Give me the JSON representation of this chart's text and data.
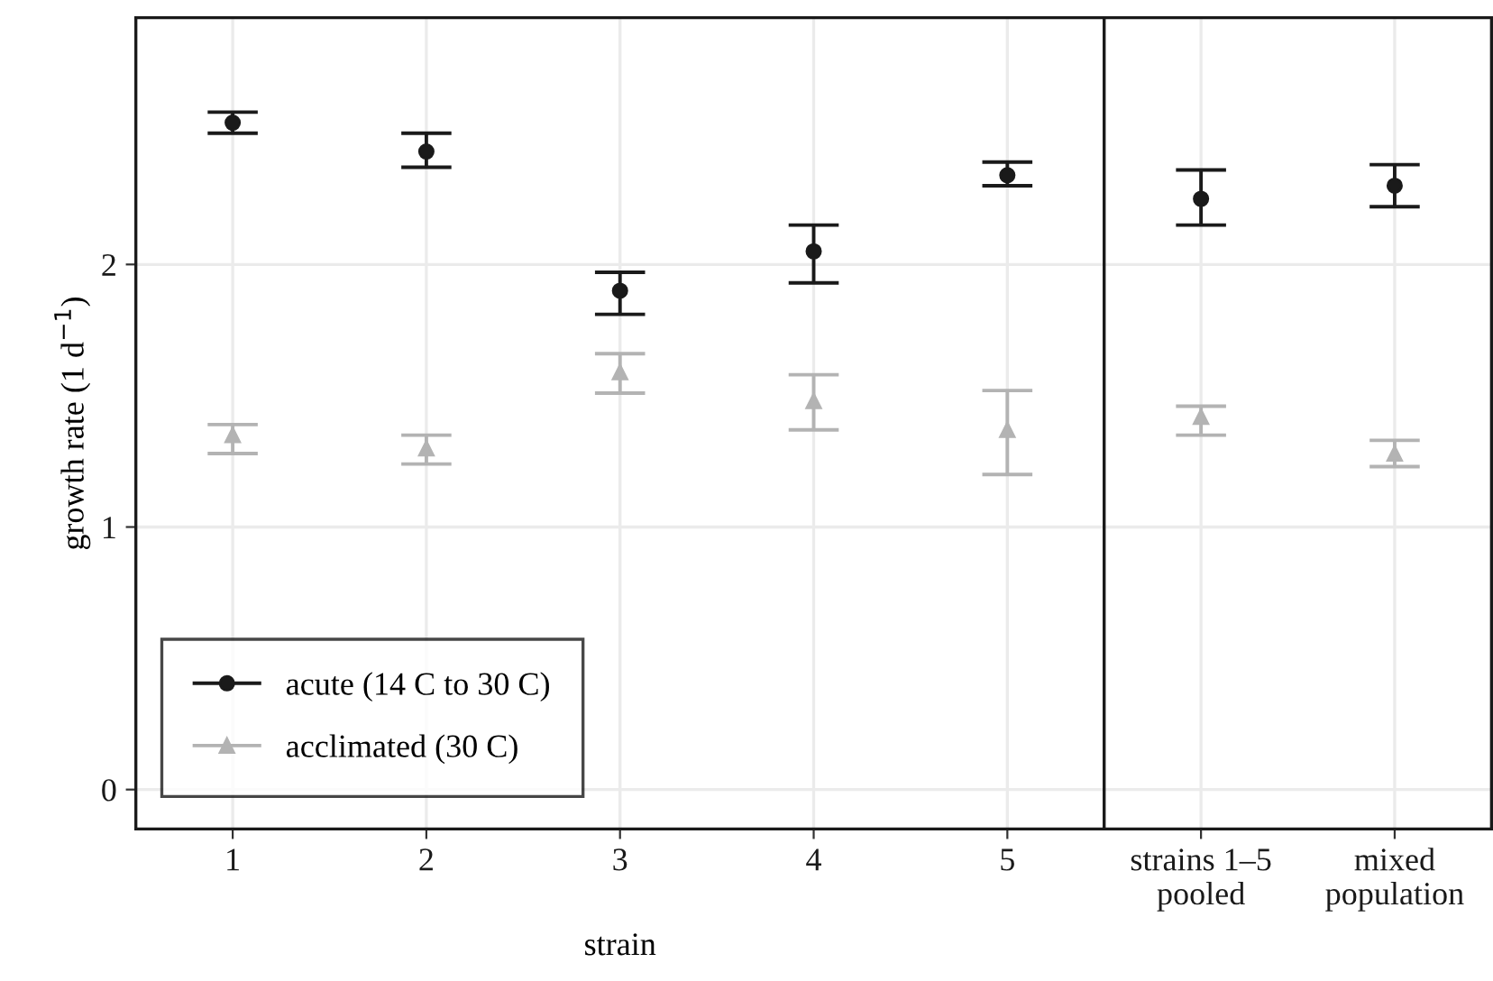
{
  "chart_data": [
    {
      "type": "scatter",
      "categories": [
        "1",
        "2",
        "3",
        "4",
        "5"
      ],
      "xlabel": "strain",
      "ylabel": "growth rate (1 d$^{−1}$)",
      "ylim": [
        -0.15,
        2.94
      ],
      "yticks": [
        0,
        1,
        2
      ],
      "grid": true,
      "legend": "bottom left",
      "series": [
        {
          "name": "acute (14 C to 30 C)",
          "color": "#1a1a1a",
          "marker": "circle",
          "values": [
            2.54,
            2.43,
            1.9,
            2.05,
            2.34
          ],
          "errors": [
            [
              2.5,
              2.58
            ],
            [
              2.37,
              2.5
            ],
            [
              1.81,
              1.97
            ],
            [
              1.93,
              2.15
            ],
            [
              2.3,
              2.39
            ]
          ]
        },
        {
          "name": "acclimated (30 C)",
          "color": "#b3b3b3",
          "marker": "triangle",
          "values": [
            1.35,
            1.3,
            1.59,
            1.48,
            1.37
          ],
          "errors": [
            [
              1.28,
              1.39
            ],
            [
              1.24,
              1.35
            ],
            [
              1.51,
              1.66
            ],
            [
              1.37,
              1.58
            ],
            [
              1.2,
              1.52
            ]
          ]
        }
      ]
    },
    {
      "type": "scatter",
      "categories": [
        "strains 1–5\npooled",
        "mixed\npopulation"
      ],
      "ylim": [
        -0.15,
        2.94
      ],
      "yticks": [
        0,
        1,
        2
      ],
      "grid": true,
      "tick_labels": "x",
      "series": [
        {
          "color": "#1a1a1a",
          "marker": "circle",
          "values": [
            2.25,
            2.3
          ],
          "errors": [
            [
              2.15,
              2.36
            ],
            [
              2.22,
              2.38
            ]
          ]
        },
        {
          "color": "#b3b3b3",
          "marker": "triangle",
          "values": [
            1.42,
            1.28
          ],
          "errors": [
            [
              1.35,
              1.46
            ],
            [
              1.23,
              1.33
            ]
          ]
        }
      ]
    }
  ]
}
